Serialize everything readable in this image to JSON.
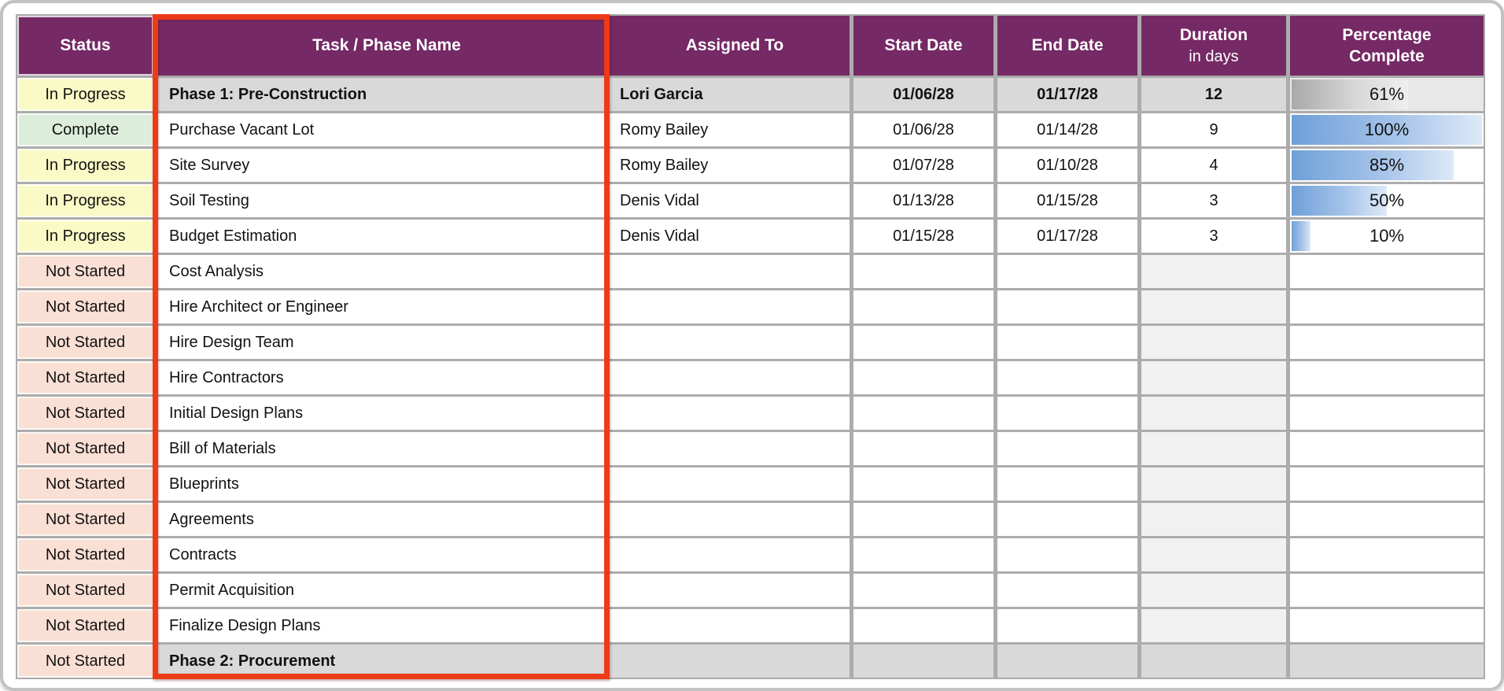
{
  "table": {
    "columns": [
      {
        "key": "status",
        "label": "Status"
      },
      {
        "key": "task",
        "label": "Task / Phase Name"
      },
      {
        "key": "assigned",
        "label": "Assigned To"
      },
      {
        "key": "start",
        "label": "Start Date"
      },
      {
        "key": "end",
        "label": "End Date"
      },
      {
        "key": "duration",
        "label": "Duration",
        "sublabel": "in days"
      },
      {
        "key": "pct",
        "label": "Percentage Complete"
      }
    ],
    "rows": [
      {
        "status": "In Progress",
        "status_type": "in-progress",
        "task": "Phase 1: Pre-Construction",
        "assigned": "Lori Garcia",
        "start": "01/06/28",
        "end": "01/17/28",
        "duration": "12",
        "pct": 61,
        "pct_label": "61%",
        "bar": "gray",
        "phase": true
      },
      {
        "status": "Complete",
        "status_type": "complete",
        "task": "Purchase Vacant Lot",
        "assigned": "Romy Bailey",
        "start": "01/06/28",
        "end": "01/14/28",
        "duration": "9",
        "pct": 100,
        "pct_label": "100%",
        "bar": "blue"
      },
      {
        "status": "In Progress",
        "status_type": "in-progress",
        "task": "Site Survey",
        "assigned": "Romy Bailey",
        "start": "01/07/28",
        "end": "01/10/28",
        "duration": "4",
        "pct": 85,
        "pct_label": "85%",
        "bar": "blue"
      },
      {
        "status": "In Progress",
        "status_type": "in-progress",
        "task": "Soil Testing",
        "assigned": "Denis Vidal",
        "start": "01/13/28",
        "end": "01/15/28",
        "duration": "3",
        "pct": 50,
        "pct_label": "50%",
        "bar": "blue"
      },
      {
        "status": "In Progress",
        "status_type": "in-progress",
        "task": "Budget Estimation",
        "assigned": "Denis Vidal",
        "start": "01/15/28",
        "end": "01/17/28",
        "duration": "3",
        "pct": 10,
        "pct_label": "10%",
        "bar": "blue"
      },
      {
        "status": "Not Started",
        "status_type": "not-started",
        "task": "Cost Analysis"
      },
      {
        "status": "Not Started",
        "status_type": "not-started",
        "task": "Hire Architect or Engineer"
      },
      {
        "status": "Not Started",
        "status_type": "not-started",
        "task": "Hire Design Team"
      },
      {
        "status": "Not Started",
        "status_type": "not-started",
        "task": "Hire Contractors"
      },
      {
        "status": "Not Started",
        "status_type": "not-started",
        "task": "Initial Design Plans"
      },
      {
        "status": "Not Started",
        "status_type": "not-started",
        "task": "Bill of Materials"
      },
      {
        "status": "Not Started",
        "status_type": "not-started",
        "task": "Blueprints"
      },
      {
        "status": "Not Started",
        "status_type": "not-started",
        "task": "Agreements"
      },
      {
        "status": "Not Started",
        "status_type": "not-started",
        "task": "Contracts"
      },
      {
        "status": "Not Started",
        "status_type": "not-started",
        "task": "Permit Acquisition"
      },
      {
        "status": "Not Started",
        "status_type": "not-started",
        "task": "Finalize Design Plans"
      },
      {
        "status": "Not Started",
        "status_type": "not-started",
        "task": "Phase 2: Procurement",
        "phase": true
      }
    ]
  },
  "highlight": {
    "target_column": "Task / Phase Name",
    "color": "#ee3b17"
  },
  "colors": {
    "header_bg": "#752965",
    "grid_line": "#acacac",
    "in_progress": "#fafac6",
    "complete": "#dceddb",
    "not_started": "#f9dfd4",
    "phase_bg": "#d9d9d9",
    "duration_empty": "#f1f1f1",
    "highlight": "#ee3b17",
    "bar_blue_start": "#6fa0d8",
    "bar_blue_end": "#dde9f8",
    "bar_gray_start": "#a9a9a9",
    "bar_gray_end": "#efefef"
  }
}
